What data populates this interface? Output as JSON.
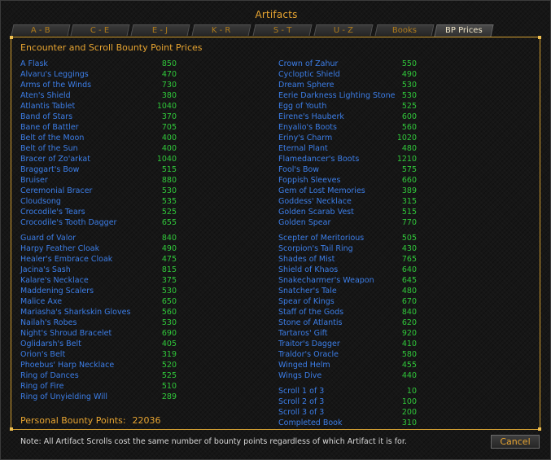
{
  "window": {
    "title": "Artifacts",
    "tabs": [
      "A - B",
      "C - E",
      "E - J",
      "K - R",
      "S - T",
      "U - Z",
      "Books",
      "BP Prices"
    ],
    "active_tab": "BP Prices"
  },
  "panel": {
    "title": "Encounter and Scroll Bounty Point Prices",
    "left_column": [
      {
        "name": "A Flask",
        "price": "850"
      },
      {
        "name": "Alvaru's Leggings",
        "price": "470"
      },
      {
        "name": "Arms of the Winds",
        "price": "730"
      },
      {
        "name": "Aten's Shield",
        "price": "380"
      },
      {
        "name": "Atlantis Tablet",
        "price": "1040"
      },
      {
        "name": "Band of Stars",
        "price": "370"
      },
      {
        "name": "Bane of Battler",
        "price": "705"
      },
      {
        "name": "Belt of the Moon",
        "price": "400"
      },
      {
        "name": "Belt of the Sun",
        "price": "400"
      },
      {
        "name": "Bracer of Zo'arkat",
        "price": "1040"
      },
      {
        "name": "Braggart's Bow",
        "price": "515"
      },
      {
        "name": "Bruiser",
        "price": "880"
      },
      {
        "name": "Ceremonial Bracer",
        "price": "530"
      },
      {
        "name": "Cloudsong",
        "price": "535"
      },
      {
        "name": "Crocodile's Tears",
        "price": "525"
      },
      {
        "name": "Crocodile's Tooth Dagger",
        "price": "655"
      },
      {
        "name": "Guard of Valor",
        "price": "840",
        "gap": true
      },
      {
        "name": "Harpy Feather Cloak",
        "price": "490"
      },
      {
        "name": "Healer's Embrace Cloak",
        "price": "475"
      },
      {
        "name": "Jacina's Sash",
        "price": "815"
      },
      {
        "name": "Kalare's Necklace",
        "price": "375"
      },
      {
        "name": "Maddening Scalers",
        "price": "530"
      },
      {
        "name": "Malice Axe",
        "price": "650"
      },
      {
        "name": "Mariasha's Sharkskin Gloves",
        "price": "560"
      },
      {
        "name": "Nailah's Robes",
        "price": "530"
      },
      {
        "name": "Night's Shroud Bracelet",
        "price": "690"
      },
      {
        "name": "Oglidarsh's Belt",
        "price": "405"
      },
      {
        "name": "Orion's Belt",
        "price": "319"
      },
      {
        "name": "Phoebus' Harp Necklace",
        "price": "520"
      },
      {
        "name": "Ring of Dances",
        "price": "525"
      },
      {
        "name": "Ring of Fire",
        "price": "510"
      },
      {
        "name": "Ring of Unyielding Will",
        "price": "289"
      }
    ],
    "right_column": [
      {
        "name": "Crown of Zahur",
        "price": "550"
      },
      {
        "name": "Cycloptic Shield",
        "price": "490"
      },
      {
        "name": "Dream Sphere",
        "price": "530"
      },
      {
        "name": "Eerie Darkness Lighting Stone",
        "price": "530"
      },
      {
        "name": "Egg of Youth",
        "price": "525"
      },
      {
        "name": "Eirene's Hauberk",
        "price": "600"
      },
      {
        "name": "Enyalio's Boots",
        "price": "560"
      },
      {
        "name": "Eriny's Charm",
        "price": "1020"
      },
      {
        "name": "Eternal Plant",
        "price": "480"
      },
      {
        "name": "Flamedancer's Boots",
        "price": "1210"
      },
      {
        "name": "Fool's Bow",
        "price": "575"
      },
      {
        "name": "Foppish Sleeves",
        "price": "660"
      },
      {
        "name": "Gem of Lost Memories",
        "price": "389"
      },
      {
        "name": "Goddess' Necklace",
        "price": "315"
      },
      {
        "name": "Golden Scarab Vest",
        "price": "515"
      },
      {
        "name": "Golden Spear",
        "price": "770"
      },
      {
        "name": "Scepter of Meritorious",
        "price": "505",
        "gap": true
      },
      {
        "name": "Scorpion's Tail Ring",
        "price": "430"
      },
      {
        "name": "Shades of Mist",
        "price": "765"
      },
      {
        "name": "Shield of Khaos",
        "price": "640"
      },
      {
        "name": "Snakecharmer's Weapon",
        "price": "645"
      },
      {
        "name": "Snatcher's Tale",
        "price": "480"
      },
      {
        "name": "Spear of Kings",
        "price": "670"
      },
      {
        "name": "Staff of the Gods",
        "price": "840"
      },
      {
        "name": "Stone of Atlantis",
        "price": "620"
      },
      {
        "name": "Tartaros' Gift",
        "price": "920"
      },
      {
        "name": "Traitor's Dagger",
        "price": "410"
      },
      {
        "name": "Traldor's Oracle",
        "price": "580"
      },
      {
        "name": "Winged Helm",
        "price": "455"
      },
      {
        "name": "Wings Dive",
        "price": "440"
      },
      {
        "name": "Scroll 1 of 3",
        "price": "10",
        "gap": true
      },
      {
        "name": "Scroll 2 of 3",
        "price": "100"
      },
      {
        "name": "Scroll 3 of 3",
        "price": "200"
      },
      {
        "name": "Completed Book",
        "price": "310"
      }
    ],
    "personal_bounty_label": "Personal Bounty Points:",
    "personal_bounty_value": "22036"
  },
  "footer": {
    "note": "Note:  All Artifact Scrolls cost the same number of bounty points regardless of which Artifact it is for.",
    "cancel_label": "Cancel"
  },
  "colors": {
    "accent": "#e8a531",
    "item_name": "#3c7ee8",
    "item_price": "#30c83a"
  }
}
